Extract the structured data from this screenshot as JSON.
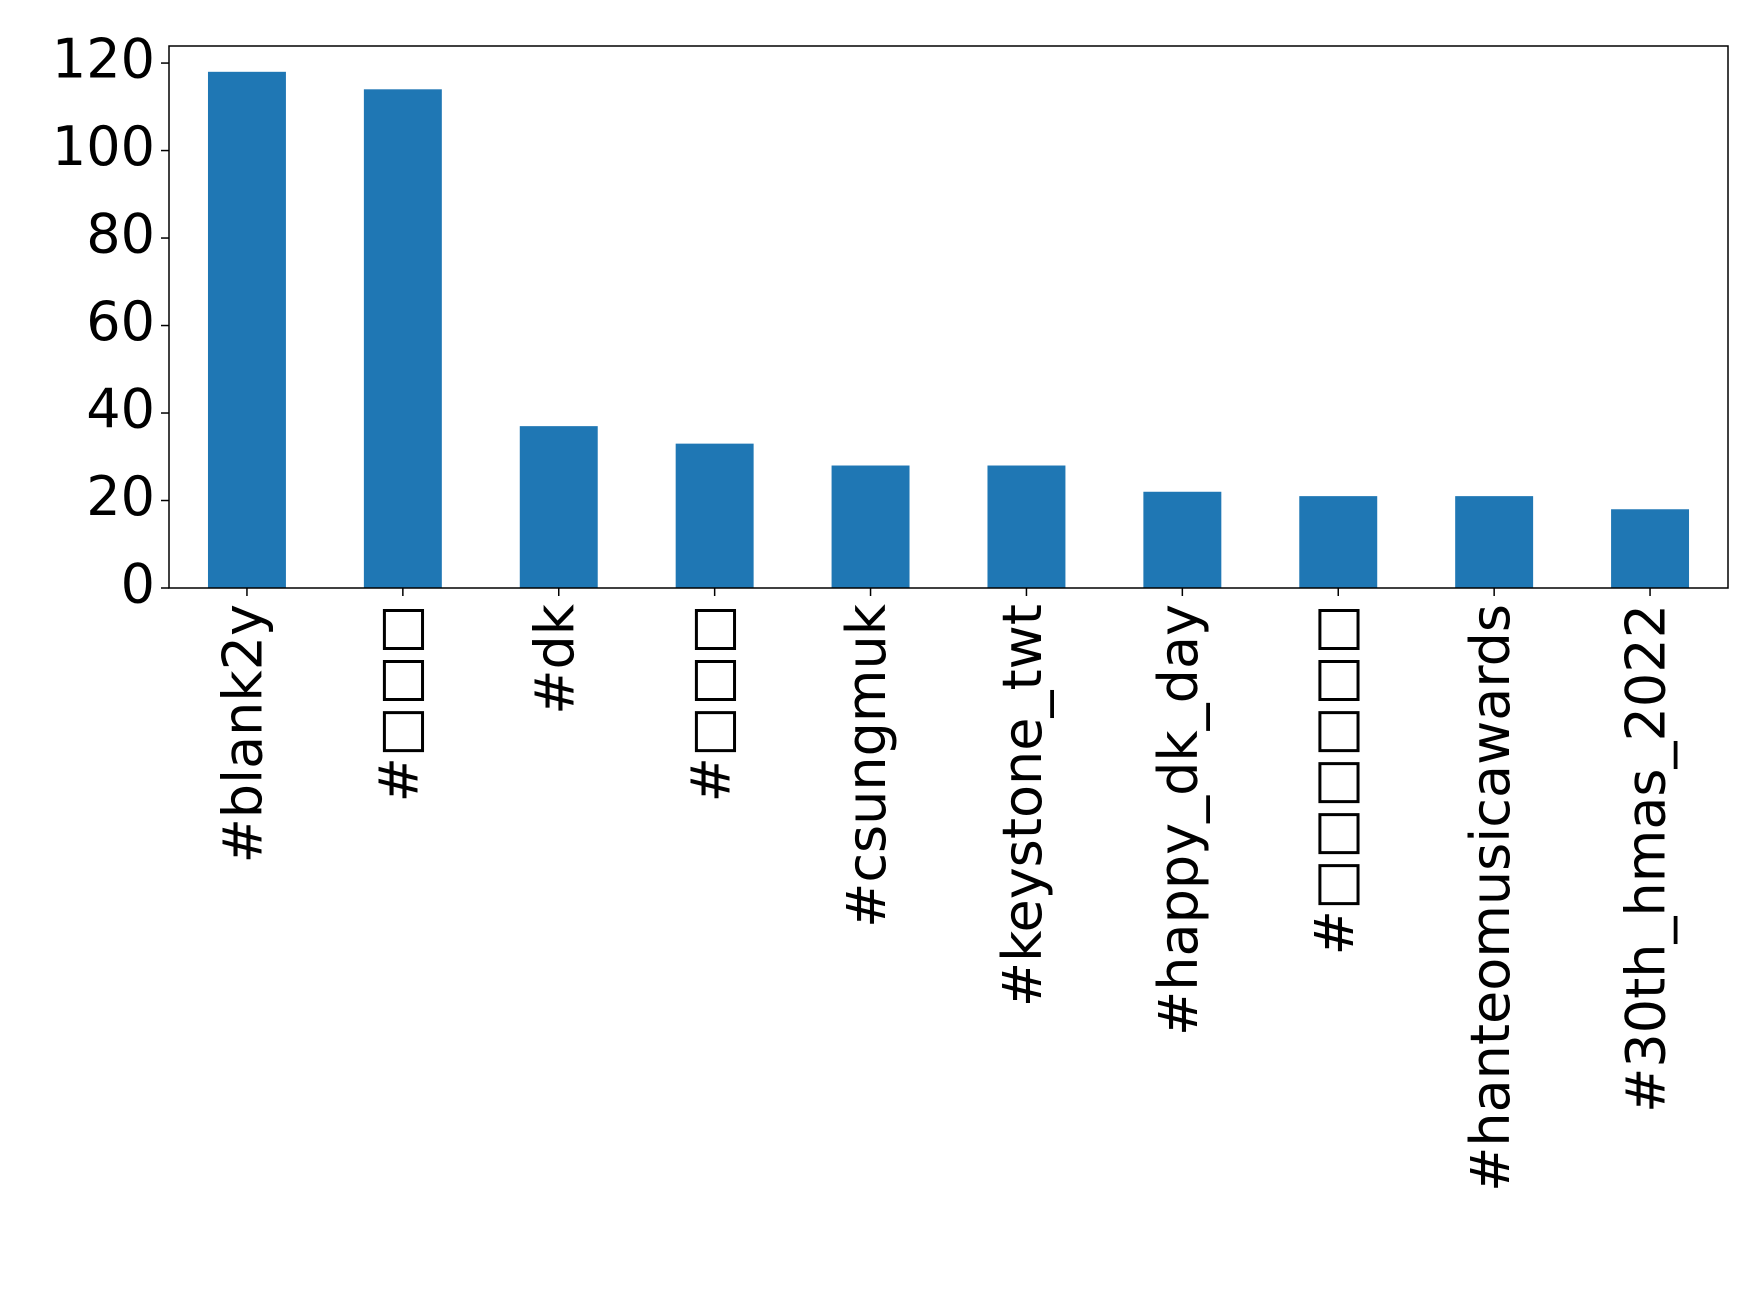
{
  "chart_data": {
    "type": "bar",
    "categories": [
      "#blank2y",
      "#□□□",
      "#dk",
      "#□□□",
      "#csungmuk",
      "#keystone_twt",
      "#happy_dk_day",
      "#□□□□□□",
      "#hanteomusicawards",
      "#30th_hmas_2022"
    ],
    "values": [
      118,
      114,
      37,
      33,
      28,
      28,
      22,
      21,
      21,
      18
    ],
    "color": "#1f77b4",
    "ylim": [
      0,
      123.9
    ],
    "yticks": [
      0,
      20,
      40,
      60,
      80,
      100,
      120
    ],
    "grid": false
  }
}
